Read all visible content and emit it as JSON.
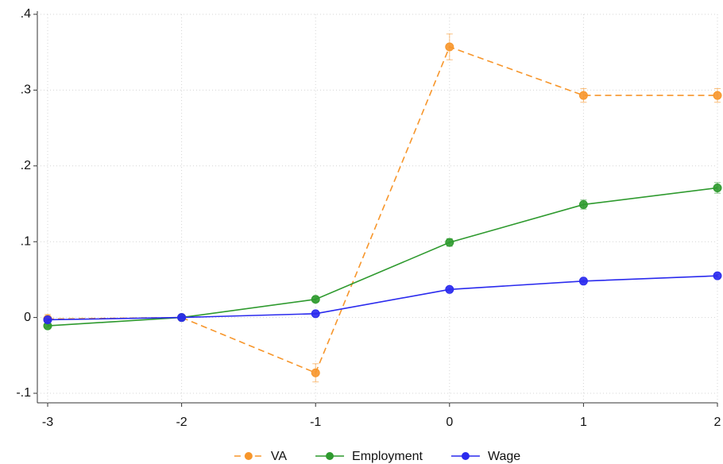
{
  "chart_data": {
    "type": "line",
    "x": [
      -3,
      -2,
      -1,
      0,
      1,
      2
    ],
    "series": [
      {
        "name": "VA",
        "color": "#f7962b",
        "line_style": "dashed",
        "values": [
          -0.002,
          0,
          -0.073,
          0.357,
          0.293,
          0.293
        ],
        "errors": [
          0.006,
          0.001,
          0.012,
          0.017,
          0.009,
          0.009
        ]
      },
      {
        "name": "Employment",
        "color": "#2e9a2e",
        "line_style": "solid",
        "values": [
          -0.011,
          0,
          0.024,
          0.099,
          0.149,
          0.171
        ],
        "errors": [
          0.002,
          0.001,
          0.003,
          0.005,
          0.006,
          0.007
        ]
      },
      {
        "name": "Wage",
        "color": "#2a2aee",
        "line_style": "solid",
        "values": [
          -0.003,
          0,
          0.005,
          0.037,
          0.048,
          0.055
        ],
        "errors": [
          0.001,
          0.001,
          0.001,
          0.002,
          0.002,
          0.002
        ]
      }
    ],
    "xlim": [
      -3,
      2
    ],
    "xticks": [
      -3,
      -2,
      -1,
      0,
      1,
      2
    ],
    "ylim": [
      -0.1,
      0.4
    ],
    "yticks": [
      {
        "value": -0.1,
        "label": "-.1"
      },
      0,
      {
        "value": 0.1,
        "label": ".1"
      },
      {
        "value": 0.2,
        "label": ".2"
      },
      {
        "value": 0.3,
        "label": ".3"
      },
      {
        "value": 0.4,
        "label": ".4"
      }
    ],
    "grid": true,
    "legend": "bottom"
  }
}
